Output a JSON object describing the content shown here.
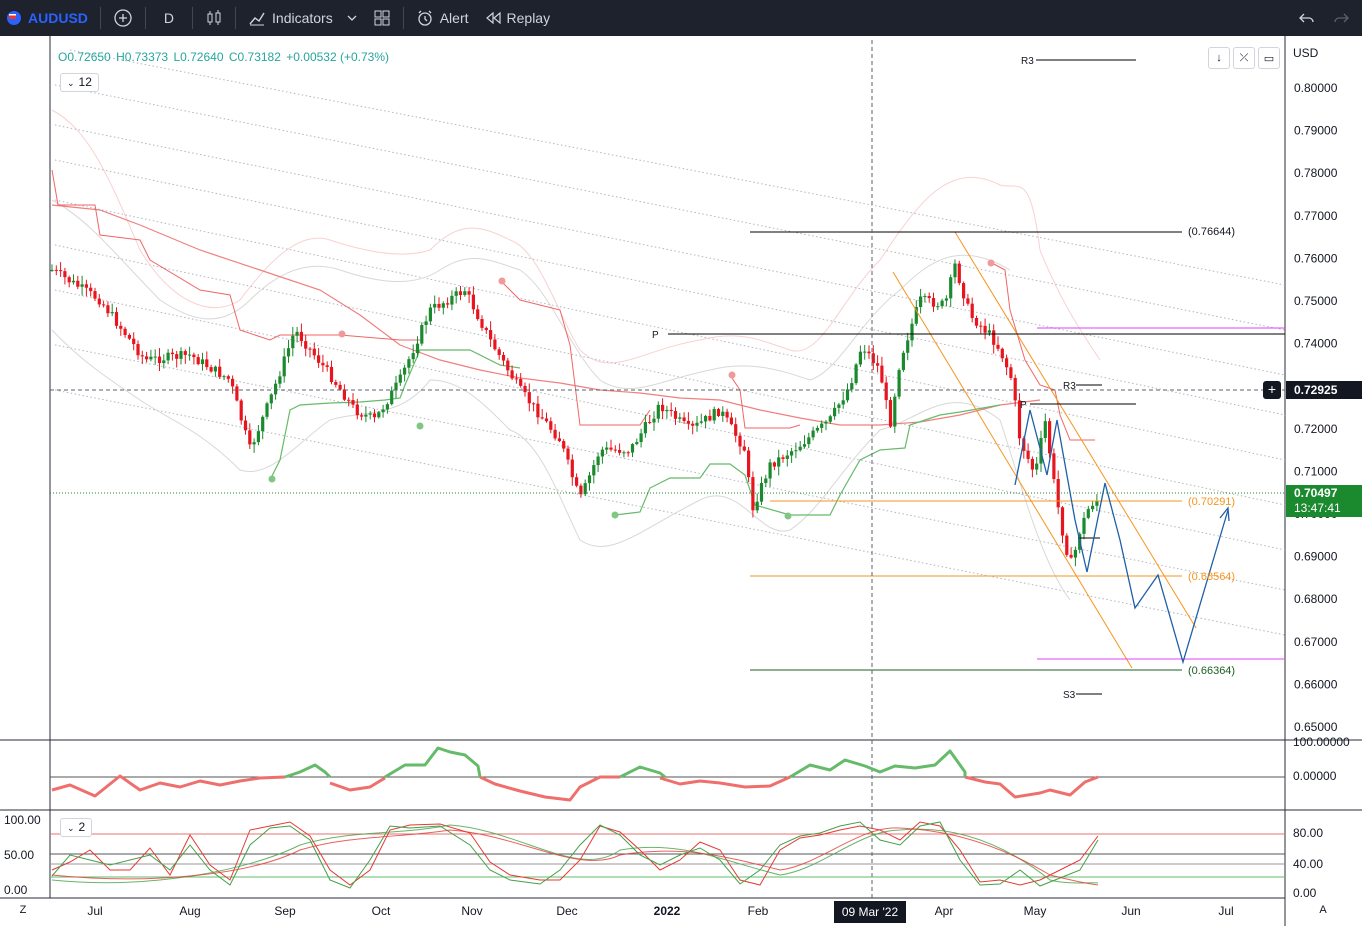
{
  "toolbar": {
    "symbol": "AUDUSD",
    "interval": "D",
    "indicators_label": "Indicators",
    "alert_label": "Alert",
    "replay_label": "Replay"
  },
  "legend": {
    "open": "O0.72650",
    "high": "H0.73373",
    "low": "L0.72640",
    "close": "C0.73182",
    "change": "+0.00532 (+0.73%)",
    "indicator_param_main": "12",
    "indicator_param_sub": "2"
  },
  "price_scale": {
    "currency": "USD",
    "ticks": [
      "0.80000",
      "0.79000",
      "0.78000",
      "0.77000",
      "0.76000",
      "0.75000",
      "0.74000",
      "0.73000",
      "0.72000",
      "0.71000",
      "0.70000",
      "0.69000",
      "0.68000",
      "0.67000",
      "0.66000",
      "0.65000"
    ],
    "crosshair_price": "0.72925",
    "last_price": "0.70497",
    "countdown": "13:47:41"
  },
  "osc_scale": {
    "ticks": [
      "100.00000",
      "0.00000"
    ]
  },
  "stoch_scale": {
    "right_ticks": [
      "80.00",
      "40.00",
      "0.00"
    ],
    "left_ticks": [
      "100.00",
      "50.00",
      "0.00"
    ]
  },
  "time_axis": {
    "labels": [
      "Jul",
      "Aug",
      "Sep",
      "Oct",
      "Nov",
      "Dec",
      "2022",
      "Feb",
      "Mar",
      "Apr",
      "May",
      "Jun",
      "Jul"
    ],
    "crosshair_date": "09 Mar '22",
    "left_btn": "Z",
    "right_btn": "A"
  },
  "levels": {
    "fib_top": "(0.76644)",
    "fib_mid": "(0.70291)",
    "fib_low1": "(0.68564)",
    "fib_low2": "(0.66364)",
    "r3_top": "R3",
    "r3_mid": "R3",
    "p_left": "P",
    "p_right": "P",
    "s3": "S3"
  },
  "colors": {
    "up": "#26a69a",
    "candle_up": "#1b8a2f",
    "down": "#ef5350",
    "fib_orange": "#f7941d",
    "blue_path": "#1f5fa8",
    "magenta": "#e040fb",
    "green_line": "#4caf50"
  }
}
